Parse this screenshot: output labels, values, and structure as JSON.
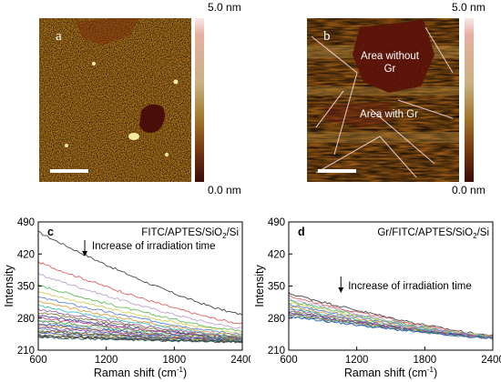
{
  "afm": {
    "a": {
      "letter": "a",
      "scale_max": "5.0 nm",
      "scale_min": "0.0 nm"
    },
    "b": {
      "letter": "b",
      "scale_max": "5.0 nm",
      "scale_min": "0.0 nm",
      "label_without": "Area without Gr",
      "label_with": "Area with Gr"
    }
  },
  "colors": {
    "afm_low": "#3a0c06",
    "afm_mid": "#a05a10",
    "afm_high": "#f0e890"
  },
  "chart_data": [
    {
      "type": "line",
      "panel": "c",
      "title": "FITC/APTES/SiO2/Si",
      "annotation": "Increase of irradiation time",
      "xlabel": "Raman shift (cm-1)",
      "ylabel": "Intensity",
      "xlim": [
        600,
        2400
      ],
      "ylim": [
        210,
        490
      ],
      "xticks": [
        600,
        1200,
        1800,
        2400
      ],
      "yticks": [
        210,
        280,
        350,
        420,
        490
      ],
      "series_start_y": [
        468,
        402,
        376,
        352,
        338,
        326,
        316,
        307,
        299,
        292,
        286,
        281,
        276,
        272,
        268,
        264,
        260,
        256,
        253,
        250,
        247,
        244,
        242,
        240,
        238
      ],
      "series_end_y": [
        288,
        268,
        258,
        252,
        248,
        245,
        242,
        240,
        238,
        237,
        236,
        235,
        234,
        233,
        232,
        232,
        231,
        231,
        230,
        230,
        229,
        229,
        229,
        228,
        228
      ]
    },
    {
      "type": "line",
      "panel": "d",
      "title": "Gr/FITC/APTES/SiO2/Si",
      "annotation": "Increase of irradiation time",
      "xlabel": "Raman shift (cm-1)",
      "ylabel": "Intensity",
      "xlim": [
        600,
        2400
      ],
      "ylim": [
        210,
        490
      ],
      "xticks": [
        600,
        1200,
        1800,
        2400
      ],
      "yticks": [
        210,
        280,
        350,
        420,
        490
      ],
      "series_start_y": [
        334,
        328,
        322,
        318,
        314,
        310,
        306,
        302,
        299,
        296,
        293,
        290,
        288,
        286,
        284
      ],
      "series_end_y": [
        242,
        241,
        240,
        240,
        239,
        239,
        238,
        238,
        238,
        237,
        237,
        237,
        236,
        236,
        236
      ]
    }
  ]
}
